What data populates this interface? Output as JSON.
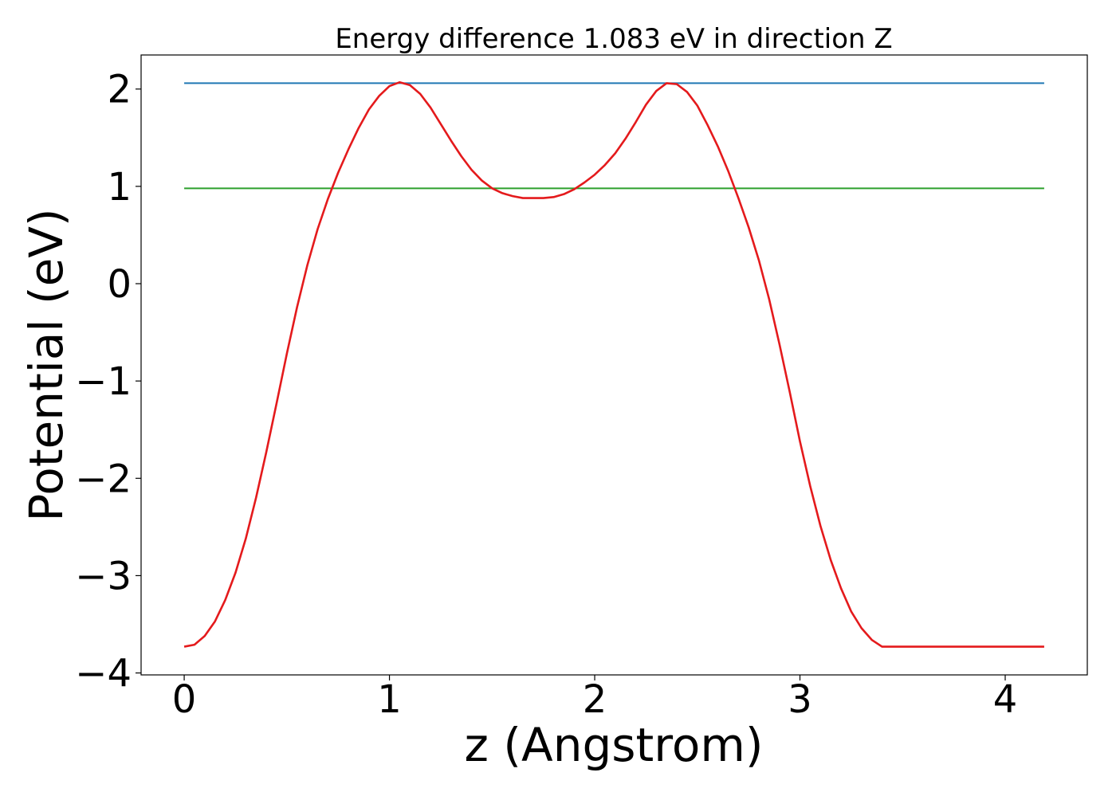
{
  "chart_data": {
    "type": "line",
    "title": "Energy difference 1.083 eV in direction Z",
    "xlabel": "z (Angstrom)",
    "ylabel": "Potential (eV)",
    "xlim": [
      -0.21,
      4.4
    ],
    "ylim": [
      -4.02,
      2.35
    ],
    "xticks": [
      0,
      1,
      2,
      3,
      4
    ],
    "xtick_labels": [
      "0",
      "1",
      "2",
      "3",
      "4"
    ],
    "yticks": [
      -4,
      -3,
      -2,
      -1,
      0,
      1,
      2
    ],
    "ytick_labels": [
      "−4",
      "−3",
      "−2",
      "−1",
      "0",
      "1",
      "2"
    ],
    "grid": false,
    "legend": false,
    "series": [
      {
        "color": "#1f77b4",
        "x": [
          0,
          4.19
        ],
        "y": [
          2.06,
          2.06
        ]
      },
      {
        "color": "#2ca02c",
        "x": [
          0,
          4.19
        ],
        "y": [
          0.98,
          0.98
        ]
      },
      {
        "color": "#e41a1c",
        "x": [
          0.0,
          0.05,
          0.1,
          0.15,
          0.2,
          0.25,
          0.3,
          0.35,
          0.4,
          0.45,
          0.5,
          0.55,
          0.6,
          0.65,
          0.7,
          0.75,
          0.8,
          0.85,
          0.9,
          0.95,
          1.0,
          1.05,
          1.1,
          1.15,
          1.2,
          1.25,
          1.3,
          1.35,
          1.4,
          1.45,
          1.5,
          1.55,
          1.6,
          1.65,
          1.7,
          1.75,
          1.8,
          1.85,
          1.9,
          1.95,
          2.0,
          2.05,
          2.1,
          2.15,
          2.2,
          2.25,
          2.3,
          2.35,
          2.4,
          2.45,
          2.5,
          2.55,
          2.6,
          2.65,
          2.7,
          2.75,
          2.8,
          2.85,
          2.9,
          2.95,
          3.0,
          3.05,
          3.1,
          3.15,
          3.2,
          3.25,
          3.3,
          3.35,
          3.4,
          3.45,
          3.5,
          3.55,
          3.6,
          3.65,
          3.7,
          3.75,
          3.8,
          3.85,
          3.9,
          3.95,
          4.0,
          4.05,
          4.1,
          4.15,
          4.19
        ],
        "y": [
          -3.73,
          -3.71,
          -3.62,
          -3.47,
          -3.25,
          -2.97,
          -2.62,
          -2.2,
          -1.73,
          -1.23,
          -0.72,
          -0.24,
          0.19,
          0.56,
          0.87,
          1.14,
          1.38,
          1.6,
          1.79,
          1.93,
          2.03,
          2.07,
          2.04,
          1.95,
          1.81,
          1.64,
          1.47,
          1.31,
          1.17,
          1.06,
          0.98,
          0.93,
          0.9,
          0.88,
          0.88,
          0.88,
          0.89,
          0.92,
          0.97,
          1.04,
          1.12,
          1.22,
          1.34,
          1.49,
          1.66,
          1.84,
          1.98,
          2.06,
          2.05,
          1.97,
          1.83,
          1.63,
          1.41,
          1.16,
          0.88,
          0.58,
          0.24,
          -0.16,
          -0.62,
          -1.11,
          -1.62,
          -2.08,
          -2.49,
          -2.84,
          -3.13,
          -3.37,
          -3.54,
          -3.66,
          -3.73,
          -3.73,
          -3.73,
          -3.73,
          -3.73,
          -3.73,
          -3.73,
          -3.73,
          -3.73,
          -3.73,
          -3.73,
          -3.73,
          -3.73,
          -3.73,
          -3.73,
          -3.73,
          -3.73
        ]
      }
    ]
  }
}
